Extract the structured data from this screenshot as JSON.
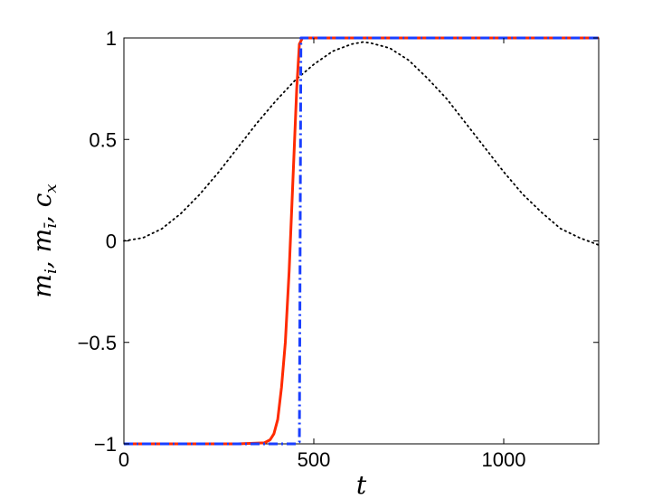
{
  "chart_data": {
    "type": "line",
    "title": "",
    "xlabel": "t",
    "ylabel": {
      "parts": [
        {
          "base": "m",
          "sub": "i"
        },
        {
          "base": "m",
          "sub": "ī"
        },
        {
          "base": "c",
          "sub": "x"
        }
      ],
      "separator": ", "
    },
    "xlim": [
      0,
      1250
    ],
    "ylim": [
      -1,
      1
    ],
    "xticks": [
      0,
      500,
      1000
    ],
    "yticks": [
      -1,
      -0.5,
      0,
      0.5,
      1
    ],
    "xtick_labels": [
      "0",
      "500",
      "1000"
    ],
    "ytick_labels": [
      "−1",
      "−0.5",
      "0",
      "0.5",
      "1"
    ],
    "grid": false,
    "series": [
      {
        "style": "solid",
        "color": "#ff2a00",
        "x": [
          0,
          300,
          370,
          385,
          395,
          405,
          415,
          425,
          435,
          445,
          455,
          462,
          470,
          1250
        ],
        "y": [
          -1,
          -1,
          -0.995,
          -0.98,
          -0.95,
          -0.88,
          -0.72,
          -0.5,
          -0.15,
          0.3,
          0.75,
          0.97,
          1,
          1
        ]
      },
      {
        "style": "dashdot",
        "color": "#1a3fff",
        "x": [
          0,
          455,
          462,
          466,
          1250
        ],
        "y": [
          -1,
          -1,
          -0.99,
          1,
          1
        ]
      },
      {
        "style": "dotted",
        "color": "#000000",
        "x": [
          0,
          50,
          100,
          150,
          200,
          250,
          300,
          350,
          400,
          450,
          500,
          550,
          600,
          630,
          650,
          700,
          750,
          800,
          850,
          900,
          950,
          1000,
          1050,
          1100,
          1150,
          1200,
          1250
        ],
        "y": [
          0,
          0.015,
          0.06,
          0.135,
          0.23,
          0.34,
          0.46,
          0.58,
          0.69,
          0.79,
          0.87,
          0.935,
          0.97,
          0.98,
          0.975,
          0.95,
          0.89,
          0.8,
          0.7,
          0.58,
          0.46,
          0.34,
          0.23,
          0.14,
          0.06,
          0.015,
          -0.02
        ]
      }
    ]
  }
}
